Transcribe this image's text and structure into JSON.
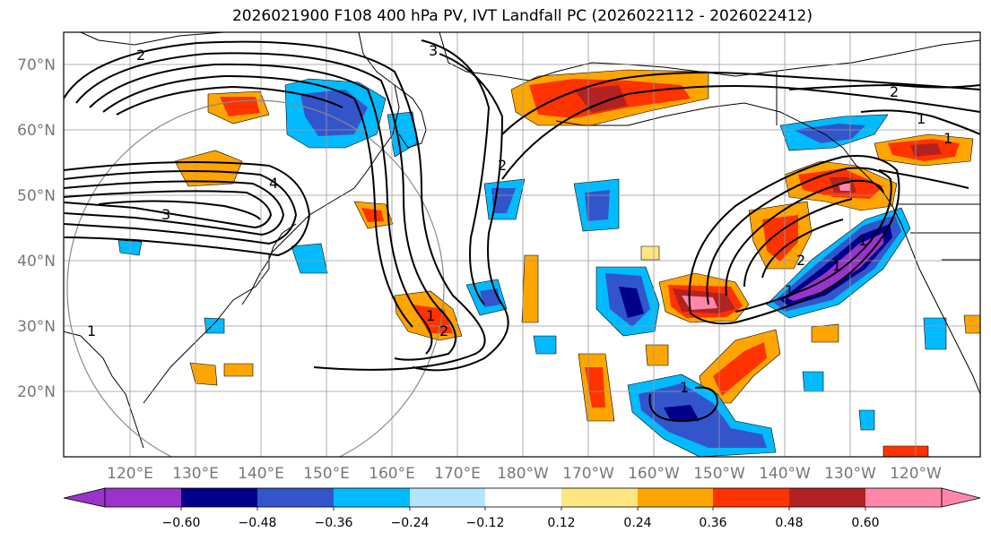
{
  "title": "2026021900 F108 400 hPa PV, IVT Landfall PC (2026022112 - 2026022412)",
  "lat_labels": [
    "70°N",
    "60°N",
    "50°N",
    "40°N",
    "30°N",
    "20°N"
  ],
  "lon_labels": [
    "120°E",
    "130°E",
    "140°E",
    "150°E",
    "160°E",
    "170°E",
    "180°W",
    "170°W",
    "160°W",
    "150°W",
    "140°W",
    "130°W",
    "120°W"
  ],
  "colorbar": {
    "colors": [
      "#9933cc",
      "#000088",
      "#3355cc",
      "#00bbff",
      "#b3e5ff",
      "#ffffff",
      "#ffe680",
      "#ffa500",
      "#ff3300",
      "#b22222",
      "#ff88aa"
    ],
    "tick_labels": [
      "−0.60",
      "−0.48",
      "−0.36",
      "−0.24",
      "−0.12",
      "0.12",
      "0.24",
      "0.36",
      "0.48",
      "0.60"
    ]
  },
  "contour_labels": [
    "2",
    "3",
    "3",
    "4",
    "2",
    "2",
    "1",
    "2",
    "1",
    "1",
    "2",
    "1",
    "1",
    "1",
    "1",
    "1"
  ]
}
